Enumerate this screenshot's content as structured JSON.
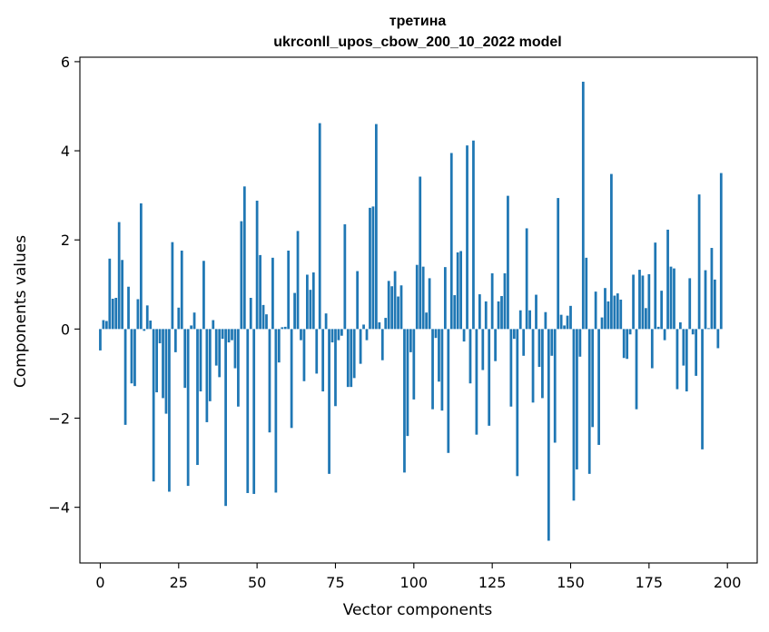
{
  "chart_data": {
    "type": "bar",
    "title": "третина",
    "subtitle": "ukrconll_upos_cbow_200_10_2022 model",
    "xlabel": "Vector components",
    "ylabel": "Components values",
    "xlim": [
      -6.5,
      209.5
    ],
    "ylim": [
      -5.25,
      6.1
    ],
    "xticks": [
      0,
      25,
      50,
      75,
      100,
      125,
      150,
      175,
      200
    ],
    "yticks": [
      -4,
      -2,
      0,
      2,
      4,
      6
    ],
    "xtick_labels": [
      "0",
      "25",
      "50",
      "75",
      "100",
      "125",
      "150",
      "175",
      "200"
    ],
    "ytick_labels": [
      "−4",
      "−2",
      "0",
      "2",
      "4",
      "6"
    ],
    "grid": false,
    "bar_color": "#1f77b4",
    "values": [
      -0.48,
      0.2,
      0.18,
      1.58,
      0.68,
      0.7,
      2.4,
      1.55,
      -2.15,
      0.95,
      -1.22,
      -1.28,
      0.67,
      2.82,
      -0.04,
      0.53,
      0.19,
      -3.42,
      -1.42,
      -0.32,
      -1.55,
      -1.9,
      -3.65,
      1.95,
      -0.52,
      0.48,
      1.76,
      -1.32,
      -3.52,
      0.08,
      0.37,
      -3.05,
      -1.4,
      1.53,
      -2.09,
      -1.62,
      0.2,
      -0.82,
      -1.08,
      -0.22,
      -3.97,
      -0.3,
      -0.25,
      -0.88,
      -1.74,
      2.42,
      3.2,
      -3.68,
      0.7,
      -3.7,
      2.88,
      1.66,
      0.54,
      0.33,
      -2.32,
      1.6,
      -3.67,
      -0.75,
      0.04,
      0.05,
      1.76,
      -2.22,
      0.81,
      2.2,
      -0.25,
      -1.17,
      1.22,
      0.88,
      1.27,
      -1.0,
      4.62,
      -1.4,
      0.35,
      -3.25,
      -0.3,
      -1.73,
      -0.25,
      -0.15,
      2.35,
      -1.3,
      -1.3,
      -1.1,
      1.3,
      -0.78,
      0.1,
      -0.25,
      2.72,
      2.75,
      4.6,
      0.15,
      -0.7,
      0.25,
      1.08,
      0.96,
      1.3,
      0.73,
      0.98,
      -3.22,
      -2.4,
      -0.52,
      -1.58,
      1.44,
      3.42,
      1.4,
      0.37,
      1.14,
      -1.8,
      -0.2,
      -1.18,
      -1.83,
      1.39,
      -2.78,
      3.95,
      0.76,
      1.72,
      1.75,
      -0.28,
      4.12,
      -1.22,
      4.23,
      -2.37,
      0.78,
      -0.92,
      0.62,
      -2.17,
      1.25,
      -0.72,
      0.62,
      0.74,
      1.25,
      2.99,
      -1.74,
      -0.22,
      -3.3,
      0.42,
      -0.6,
      2.26,
      0.42,
      -1.65,
      0.77,
      -0.85,
      -1.55,
      0.38,
      -4.75,
      -0.6,
      -2.55,
      2.94,
      0.32,
      0.08,
      0.3,
      0.52,
      -3.85,
      -3.15,
      -0.62,
      5.55,
      1.6,
      -3.25,
      -2.2,
      0.84,
      -2.6,
      0.26,
      0.92,
      0.62,
      3.48,
      0.75,
      0.8,
      0.66,
      -0.65,
      -0.67,
      -0.12,
      1.22,
      -1.8,
      1.33,
      1.2,
      0.47,
      1.23,
      -0.88,
      1.94,
      0.05,
      0.86,
      -0.25,
      2.23,
      1.4,
      1.36,
      -1.35,
      0.15,
      -0.82,
      -1.4,
      1.14,
      -0.12,
      -1.05,
      3.02,
      -2.7,
      1.32,
      0.02,
      1.82,
      1.11,
      -0.43,
      3.5
    ]
  }
}
